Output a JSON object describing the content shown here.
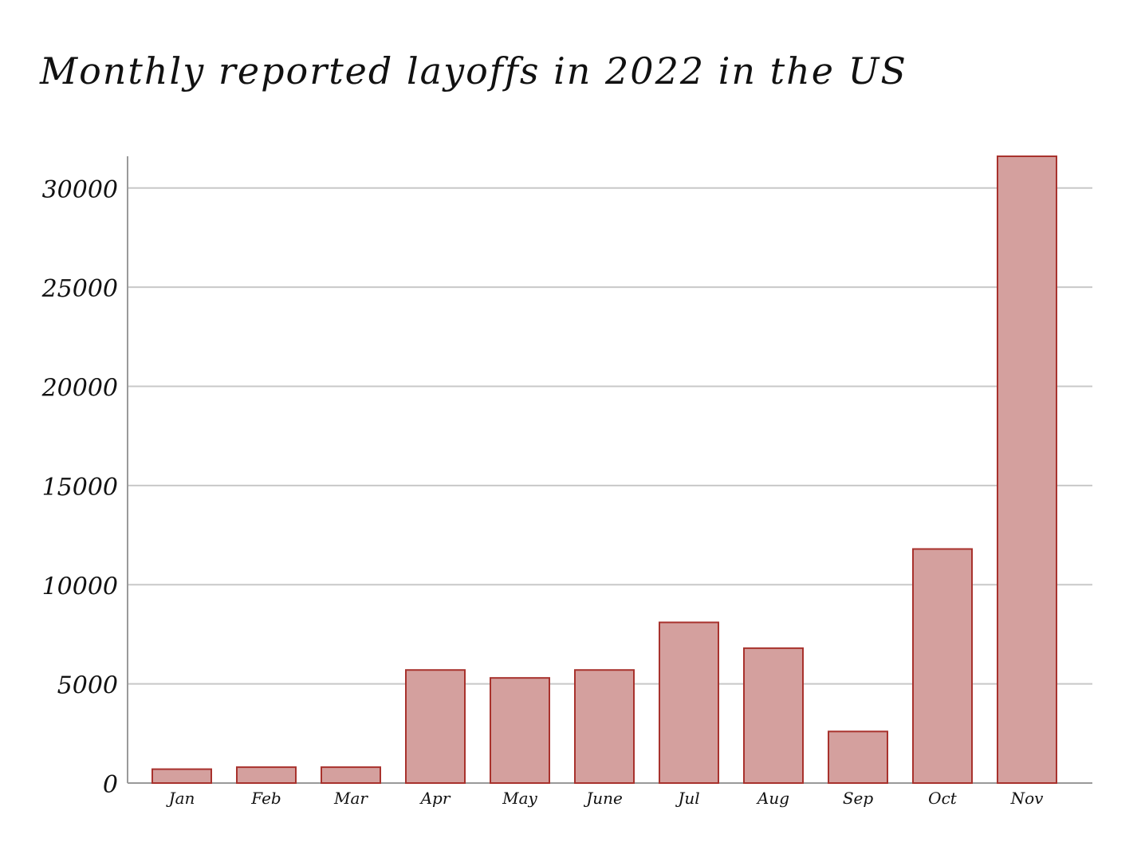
{
  "chart_data": {
    "type": "bar",
    "title": "Monthly reported layoffs in 2022 in the US",
    "xlabel": "",
    "ylabel": "",
    "categories": [
      "Jan",
      "Feb",
      "Mar",
      "Apr",
      "May",
      "June",
      "Jul",
      "Aug",
      "Sep",
      "Oct",
      "Nov"
    ],
    "values": [
      700,
      800,
      800,
      5700,
      5300,
      5700,
      8100,
      6800,
      2600,
      11800,
      31600
    ],
    "ylim": [
      0,
      31600
    ],
    "y_ticks": [
      0,
      5000,
      10000,
      15000,
      20000,
      25000,
      30000
    ],
    "y_tick_labels": [
      "0",
      "5000",
      "10000",
      "15000",
      "20000",
      "25000",
      "30000"
    ],
    "grid": true,
    "legend": "none",
    "colors": {
      "bar_fill": "#d4a09e",
      "bar_edge": "#a8322d",
      "grid": "#c8c8c8",
      "axis": "#9a9a9a"
    }
  }
}
